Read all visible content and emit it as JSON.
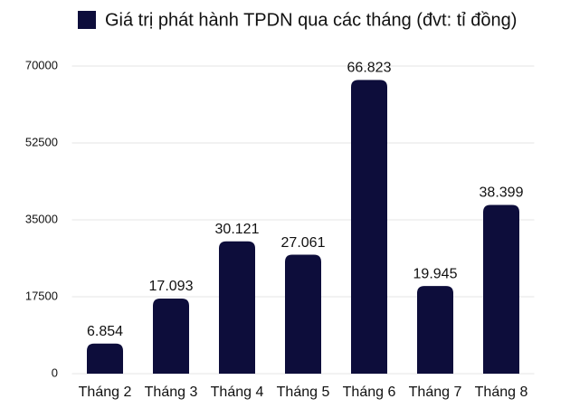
{
  "chart_data": {
    "type": "bar",
    "categories": [
      "Tháng 2",
      "Tháng 3",
      "Tháng 4",
      "Tháng 5",
      "Tháng 6",
      "Tháng 7",
      "Tháng 8"
    ],
    "series": [
      {
        "name": "Giá trị phát hành TPDN qua các tháng (đvt: tỉ đồng)",
        "color": "#0d0d3b",
        "values": [
          6854,
          17093,
          30121,
          27061,
          66823,
          19945,
          38399
        ],
        "value_labels": [
          "6.854",
          "17.093",
          "30.121",
          "27.061",
          "66.823",
          "19.945",
          "38.399"
        ]
      }
    ],
    "ylim": [
      0,
      70000
    ],
    "yticks": [
      0,
      17500,
      35000,
      52500,
      70000
    ],
    "grid": true,
    "legend": "top"
  }
}
